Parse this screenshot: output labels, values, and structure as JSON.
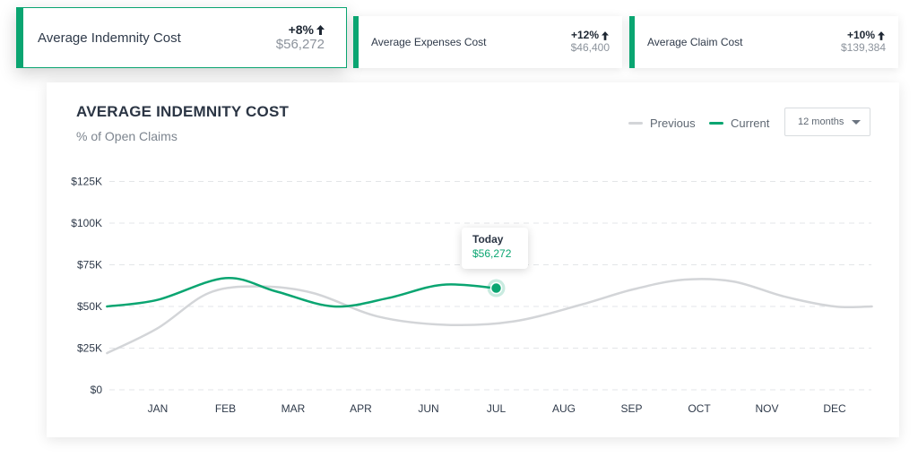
{
  "kpis": [
    {
      "label": "Average Indemnity Cost",
      "change": "+8%",
      "value": "$56,272"
    },
    {
      "label": "Average Expenses Cost",
      "change": "+12%",
      "value": "$46,400"
    },
    {
      "label": "Average Claim Cost",
      "change": "+10%",
      "value": "$139,384"
    }
  ],
  "legend": {
    "previous": "Previous",
    "current": "Current"
  },
  "range_select": {
    "value": "12 months"
  },
  "tooltip": {
    "label": "Today",
    "value": "$56,272"
  },
  "colors": {
    "accent": "#0aa571",
    "previous": "#d3d5d8",
    "grid": "#e3e5e8"
  },
  "chart_data": {
    "type": "line",
    "title": "AVERAGE INDEMNITY COST",
    "subtitle": "% of Open Claims",
    "xlabel": "",
    "ylabel": "",
    "categories": [
      "JAN",
      "FEB",
      "MAR",
      "APR",
      "JUN",
      "JUL",
      "AUG",
      "SEP",
      "OCT",
      "NOV",
      "DEC"
    ],
    "y_ticks": [
      "$0",
      "$25K",
      "$50K",
      "$75K",
      "$100K",
      "$125K"
    ],
    "y_tick_values": [
      0,
      25000,
      50000,
      75000,
      100000,
      125000
    ],
    "ylim": [
      0,
      125000
    ],
    "grid": true,
    "legend_position": "top-right",
    "series": [
      {
        "name": "Previous",
        "color": "#d3d5d8",
        "x": [
          -0.75,
          0,
          0.75,
          1.5,
          2.3,
          3.25,
          4.25,
          5.25,
          6.25,
          7,
          7.75,
          8.5,
          9.25,
          10,
          10.55
        ],
        "values": [
          22000,
          37000,
          58000,
          62000,
          58000,
          44000,
          39000,
          41000,
          51000,
          60000,
          66000,
          65000,
          56000,
          50000,
          50000
        ]
      },
      {
        "name": "Current",
        "color": "#0aa571",
        "x": [
          -0.75,
          0,
          1,
          1.75,
          2.6,
          3.4,
          4.2,
          5
        ],
        "values": [
          50000,
          54000,
          67000,
          59000,
          50000,
          55000,
          63000,
          61000
        ]
      }
    ],
    "highlight": {
      "x": 5,
      "y": 61000,
      "label": "Today",
      "value_label": "$56,272"
    }
  }
}
